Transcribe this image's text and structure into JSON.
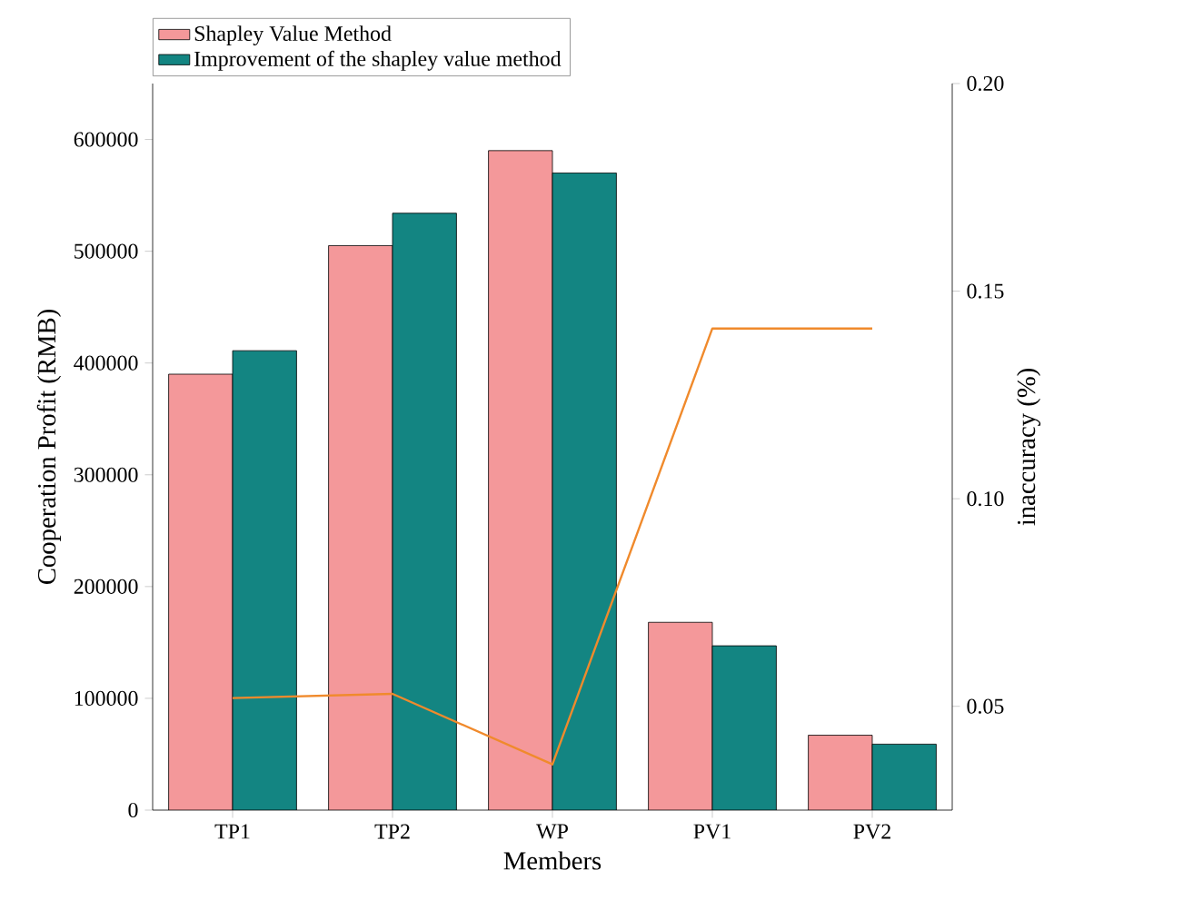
{
  "chart_data": {
    "type": "bar",
    "xlabel": "Members",
    "ylabel": "Cooperation Profit (RMB)",
    "y2label": "inaccuracy (%)",
    "categories": [
      "TP1",
      "TP2",
      "WP",
      "PV1",
      "PV2"
    ],
    "series": [
      {
        "name": "Shapley Value Method",
        "color": "#f4989a",
        "values": [
          390000,
          505000,
          590000,
          168000,
          67000
        ]
      },
      {
        "name": "Improvement of the shapley value method",
        "color": "#138582",
        "values": [
          411000,
          534000,
          570000,
          147000,
          59000
        ]
      },
      {
        "type": "line",
        "axis": "y2",
        "color": "#f08a2c",
        "values": [
          0.052,
          0.053,
          0.036,
          0.141,
          0.141
        ]
      }
    ],
    "ylim": [
      0,
      650000
    ],
    "yticks": [
      0,
      100000,
      200000,
      300000,
      400000,
      500000,
      600000
    ],
    "y2lim": [
      0.025,
      0.2
    ],
    "y2ticks": [
      {
        "value": 0.05,
        "label": "0.05"
      },
      {
        "value": 0.1,
        "label": "0.10"
      },
      {
        "value": 0.15,
        "label": "0.15"
      },
      {
        "value": 0.2,
        "label": "0.20"
      }
    ],
    "legend": "top left",
    "grid": false
  }
}
